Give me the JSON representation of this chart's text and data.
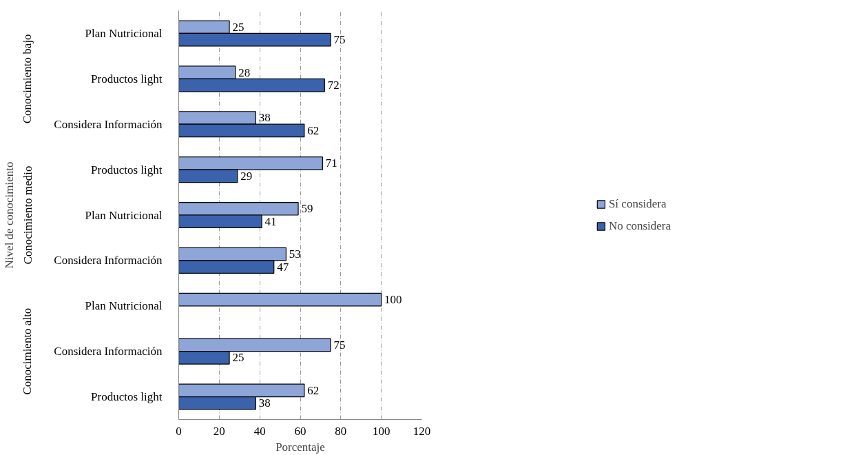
{
  "chart_data": {
    "type": "bar",
    "orientation": "horizontal",
    "xlabel": "Porcentaje",
    "ylabel": "Nivel de conocimiento",
    "categories": [
      "Plan Nutricional",
      "Productos light",
      "Considera Información",
      "Productos light",
      "Plan Nutricional",
      "Considera Información",
      "Plan Nutricional",
      "Considera Información",
      "Productos light"
    ],
    "annotations": [
      "Conocimiento bajo",
      "Conocimiento medio",
      "Conocimiento alto"
    ],
    "series": [
      {
        "name": "Sí considera",
        "color": "#8ea5d8",
        "values": [
          25,
          28,
          38,
          71,
          59,
          53,
          100,
          75,
          62
        ]
      },
      {
        "name": "No considera",
        "color": "#3a62ad",
        "values": [
          75,
          72,
          62,
          29,
          41,
          47,
          null,
          25,
          38
        ]
      }
    ],
    "xlim": [
      0,
      120
    ],
    "xticks": [
      0,
      20,
      40,
      60,
      80,
      100,
      120
    ],
    "grid": "x",
    "legend": "right",
    "data_labels": true
  }
}
